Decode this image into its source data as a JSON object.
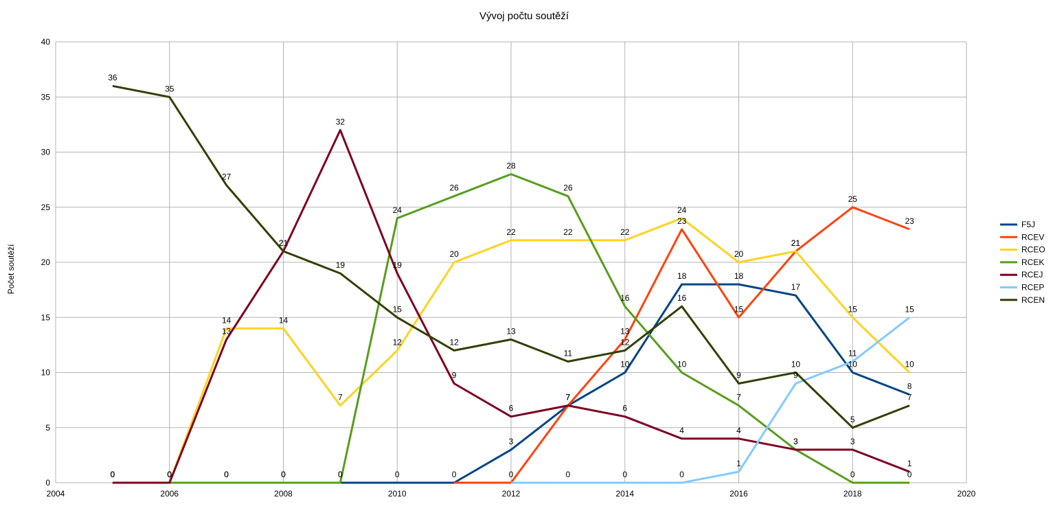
{
  "chart_data": {
    "type": "line",
    "title": "Vývoj počtu soutěží",
    "xlabel": "",
    "ylabel": "Počet soutěží",
    "xlim": [
      2004,
      2020
    ],
    "ylim": [
      0,
      40
    ],
    "x_ticks": [
      "2004",
      "2006",
      "2008",
      "2010",
      "2012",
      "2014",
      "2016",
      "2018",
      "2020"
    ],
    "y_ticks": [
      "0",
      "5",
      "10",
      "15",
      "20",
      "25",
      "30",
      "35",
      "40"
    ],
    "grid": true,
    "legend_position": "right",
    "x": [
      2005,
      2006,
      2007,
      2008,
      2009,
      2010,
      2011,
      2012,
      2013,
      2014,
      2015,
      2016,
      2017,
      2018,
      2019
    ],
    "series": [
      {
        "name": "F5J",
        "color": "#004586",
        "values": [
          0,
          0,
          0,
          0,
          0,
          0,
          0,
          3,
          7,
          10,
          18,
          18,
          17,
          10,
          8
        ],
        "labels": [
          "0",
          "0",
          "0",
          "0",
          "0",
          "0",
          "0",
          "3",
          "7",
          "10",
          "18",
          "18",
          "17",
          "10",
          "8"
        ]
      },
      {
        "name": "RCEV",
        "color": "#ff420e",
        "values": [
          null,
          null,
          null,
          null,
          null,
          null,
          0,
          0,
          7,
          13,
          23,
          15,
          21,
          25,
          23
        ],
        "labels": [
          "",
          "",
          "",
          "",
          "",
          "",
          "",
          "0",
          "7",
          "13",
          "23",
          "15",
          "21",
          "25",
          "23"
        ]
      },
      {
        "name": "RCEO",
        "color": "#ffd320",
        "values": [
          0,
          0,
          14,
          14,
          7,
          12,
          20,
          22,
          22,
          22,
          24,
          20,
          21,
          15,
          10
        ],
        "labels": [
          "0",
          "0",
          "14",
          "14",
          "7",
          "12",
          "20",
          "22",
          "22",
          "22",
          "24",
          "20",
          "21",
          "15",
          "10"
        ]
      },
      {
        "name": "RCEK",
        "color": "#579d1c",
        "values": [
          0,
          0,
          0,
          0,
          0,
          24,
          26,
          28,
          26,
          16,
          10,
          7,
          3,
          0,
          0
        ],
        "labels": [
          "0",
          "0",
          "0",
          "0",
          "0",
          "24",
          "26",
          "28",
          "26",
          "16",
          "10",
          "7",
          "3",
          "0",
          "0"
        ]
      },
      {
        "name": "RCEJ",
        "color": "#7e0021",
        "values": [
          0,
          0,
          13,
          21,
          32,
          19,
          9,
          6,
          7,
          6,
          4,
          4,
          3,
          3,
          1
        ],
        "labels": [
          "0",
          "0",
          "13",
          "21",
          "32",
          "19",
          "9",
          "6",
          "7",
          "6",
          "4",
          "4",
          "3",
          "3",
          "1"
        ]
      },
      {
        "name": "RCEP",
        "color": "#83caff",
        "values": [
          null,
          null,
          null,
          null,
          null,
          null,
          null,
          0,
          0,
          0,
          0,
          1,
          9,
          11,
          15
        ],
        "labels": [
          "",
          "",
          "",
          "",
          "",
          "",
          "",
          "",
          "0",
          "0",
          "0",
          "1",
          "9",
          "11",
          "15"
        ]
      },
      {
        "name": "RCEN",
        "color": "#314004",
        "values": [
          36,
          35,
          27,
          21,
          19,
          15,
          12,
          13,
          11,
          12,
          16,
          9,
          10,
          5,
          7
        ],
        "labels": [
          "36",
          "35",
          "27",
          "21",
          "19",
          "15",
          "12",
          "13",
          "11",
          "12",
          "16",
          "9",
          "10",
          "5",
          "7"
        ]
      }
    ]
  }
}
